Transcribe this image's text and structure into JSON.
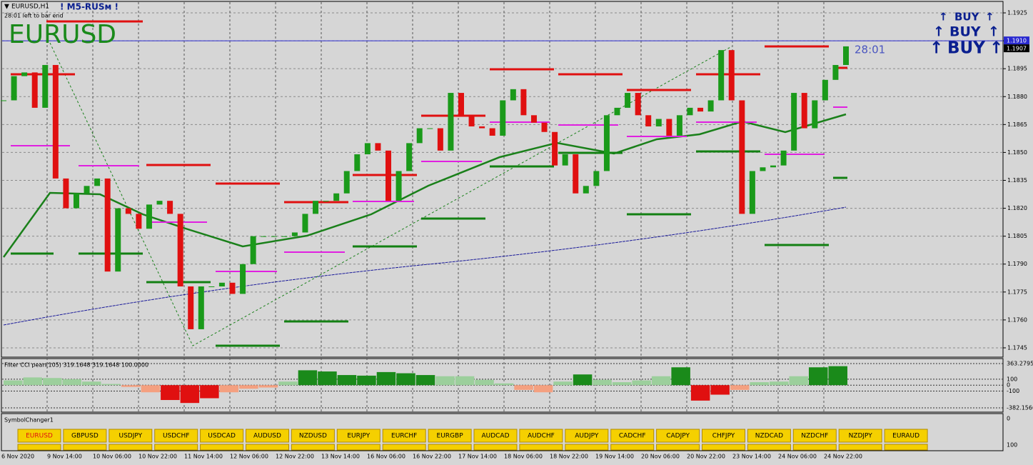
{
  "header": {
    "symbol_period": "EURUSD,H1",
    "indicator_name": "! M5-RUSм !",
    "bar_timer": "28:01 left to bar end",
    "symbol": "EURUSD",
    "countdown": "28:01",
    "signals": [
      "BUY",
      "BUY",
      "BUY"
    ]
  },
  "price_chart": {
    "ylim": [
      1.174,
      1.193
    ],
    "yticks": [
      {
        "value": 1.1925,
        "label": "1.1925"
      },
      {
        "value": 1.191,
        "label": "1.1910"
      },
      {
        "value": 1.1895,
        "label": "1.1895"
      },
      {
        "value": 1.188,
        "label": "1.1880"
      },
      {
        "value": 1.1865,
        "label": "1.1865"
      },
      {
        "value": 1.185,
        "label": "1.1850"
      },
      {
        "value": 1.1835,
        "label": "1.1835"
      },
      {
        "value": 1.182,
        "label": "1.1820"
      },
      {
        "value": 1.1805,
        "label": "1.1805"
      },
      {
        "value": 1.179,
        "label": "1.1790"
      },
      {
        "value": 1.1775,
        "label": "1.1775"
      },
      {
        "value": 1.176,
        "label": "1.1760"
      },
      {
        "value": 1.1745,
        "label": "1.1745"
      }
    ],
    "line_price": {
      "value": 1.191,
      "label": "1.1910"
    },
    "last_price": {
      "value": 1.1907,
      "label": "1.1907"
    },
    "closes": [
      1.1878,
      1.1891,
      1.1893,
      1.1874,
      1.1897,
      1.1836,
      1.182,
      1.1828,
      1.1832,
      1.1836,
      1.1786,
      1.182,
      1.1817,
      1.1809,
      1.1822,
      1.1824,
      1.1817,
      1.1778,
      1.1755,
      1.1778,
      1.1778,
      1.178,
      1.1774,
      1.179,
      1.1805,
      1.1805,
      1.1805,
      1.1805,
      1.1807,
      1.1817,
      1.1824,
      1.1824,
      1.1828,
      1.184,
      1.1849,
      1.1855,
      1.1851,
      1.1824,
      1.184,
      1.1855,
      1.1863,
      1.1863,
      1.1851,
      1.1882,
      1.187,
      1.1864,
      1.1863,
      1.1859,
      1.1878,
      1.1884,
      1.187,
      1.1866,
      1.1861,
      1.1843,
      1.1849,
      1.1828,
      1.1832,
      1.184,
      1.187,
      1.1874,
      1.1882,
      1.187,
      1.1864,
      1.1868,
      1.1859,
      1.187,
      1.1874,
      1.1872,
      1.1878,
      1.1905,
      1.1878,
      1.1817,
      1.184,
      1.1842,
      1.1843,
      1.1851,
      1.1882,
      1.1863,
      1.1878,
      1.1889,
      1.1897,
      1.1907
    ]
  },
  "oscillator": {
    "title": "Filter CCI pean(105)  319.1648 319.1648 100.0000",
    "ylim": [
      -454,
      447
    ],
    "yticks": [
      {
        "value": 363.2795,
        "label": "363.2795"
      },
      100,
      0,
      -100,
      {
        "value": -382.1566,
        "label": "-382.1566"
      }
    ],
    "values": [
      80,
      130,
      120,
      100,
      60,
      20,
      -30,
      -120,
      -250,
      -300,
      -220,
      -120,
      -60,
      -40,
      60,
      250,
      230,
      170,
      160,
      220,
      200,
      170,
      150,
      150,
      90,
      30,
      -80,
      -120,
      60,
      180,
      90,
      50,
      80,
      150,
      300,
      -260,
      -160,
      -80,
      50,
      60,
      150,
      300,
      319
    ]
  },
  "symbol_changer": {
    "title": "SymbolChanger1",
    "axis_labels": [
      "0",
      "100"
    ],
    "buttons": [
      "EURUSD",
      "GBPUSD",
      "USDJPY",
      "USDCHF",
      "USDCAD",
      "AUDUSD",
      "NZDUSD",
      "EURJPY",
      "EURCHF",
      "EURGBP",
      "AUDCAD",
      "AUDCHF",
      "AUDJPY",
      "CADCHF",
      "CADJPY",
      "CHFJPY",
      "NZDCAD",
      "NZDCHF",
      "NZDJPY",
      "EURAUD"
    ]
  },
  "time_axis": [
    "6 Nov 2020",
    "9 Nov 14:00",
    "10 Nov 06:00",
    "10 Nov 22:00",
    "11 Nov 14:00",
    "12 Nov 06:00",
    "12 Nov 22:00",
    "13 Nov 14:00",
    "16 Nov 06:00",
    "16 Nov 22:00",
    "17 Nov 14:00",
    "18 Nov 06:00",
    "18 Nov 22:00",
    "19 Nov 14:00",
    "20 Nov 06:00",
    "20 Nov 22:00",
    "23 Nov 14:00",
    "24 Nov 06:00",
    "24 Nov 22:00"
  ]
}
